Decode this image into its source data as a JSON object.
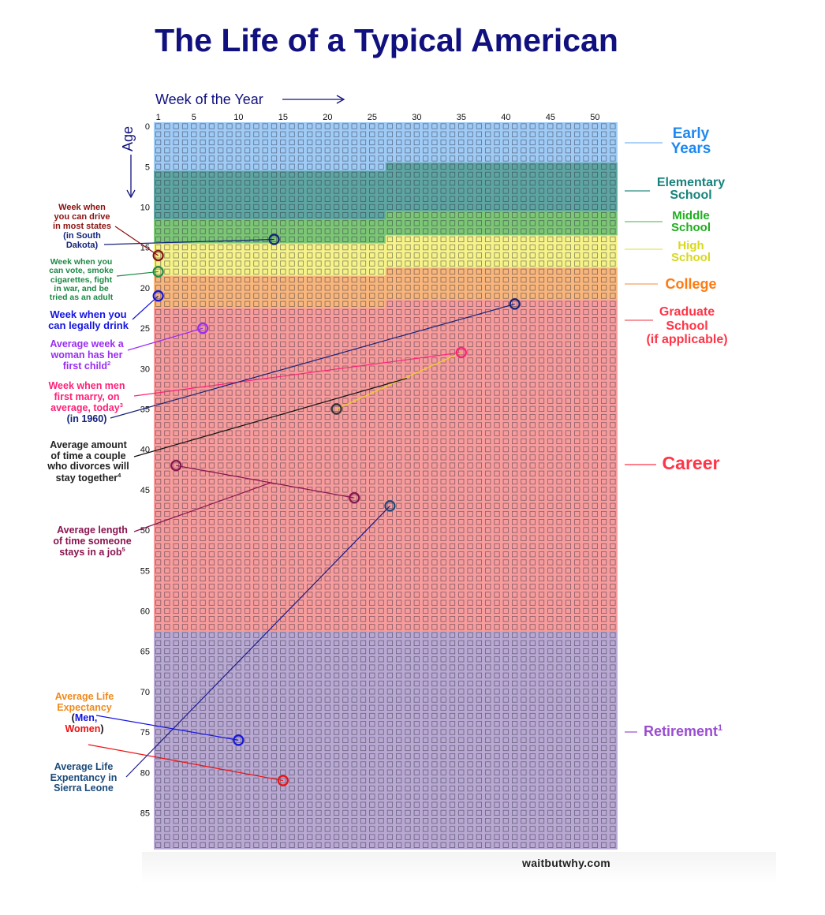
{
  "title": "The Life of a Typical American",
  "watermark": "waitbutwhy.com",
  "chart_data": {
    "type": "heatmap",
    "title": "The Life of a Typical American",
    "xlabel": "Week of the Year",
    "ylabel": "Age",
    "x_ticks": [
      "1",
      "5",
      "10",
      "15",
      "20",
      "25",
      "30",
      "35",
      "40",
      "45",
      "50"
    ],
    "y_ticks": [
      "0",
      "5",
      "10",
      "15",
      "20",
      "25",
      "30",
      "35",
      "40",
      "45",
      "50",
      "55",
      "60",
      "65",
      "70",
      "75",
      "80",
      "85"
    ],
    "weeks": 52,
    "years": 90,
    "stages": [
      {
        "name": "Early Years",
        "label_lines": [
          "Early",
          "Years"
        ],
        "start_age": 0,
        "start_week": 1,
        "fill": "#9fcbf5",
        "text_color": "#1e88f0"
      },
      {
        "name": "Elementary School",
        "label_lines": [
          "Elementary",
          "School"
        ],
        "start_age": 5,
        "start_week": 27,
        "fill": "#5ea5a2",
        "text_color": "#17837c"
      },
      {
        "name": "Middle School",
        "label_lines": [
          "Middle",
          "School"
        ],
        "start_age": 11,
        "start_week": 27,
        "fill": "#7cc676",
        "text_color": "#1fae1f"
      },
      {
        "name": "High School",
        "label_lines": [
          "High",
          "School"
        ],
        "start_age": 14,
        "start_week": 27,
        "fill": "#f6f38a",
        "text_color": "#d8d81c"
      },
      {
        "name": "College",
        "label_lines": [
          "College"
        ],
        "start_age": 18,
        "start_week": 27,
        "fill": "#f8b67c",
        "text_color": "#ff7a10"
      },
      {
        "name": "Graduate School",
        "label_lines": [
          "Graduate",
          "School",
          "(if applicable)"
        ],
        "start_age": 22,
        "start_week": 27,
        "fill": "#f79c9c",
        "text_color": "#ff3446"
      },
      {
        "name": "Career",
        "label_lines": [
          "Career"
        ],
        "start_age": 22,
        "start_week": 27,
        "fill": "#f79c9c",
        "text_color": "#ff3446"
      },
      {
        "name": "Retirement",
        "label_lines": [
          "Retirement"
        ],
        "sup": "1",
        "start_age": 63,
        "start_week": 1,
        "fill": "#b8a8d2",
        "text_color": "#9a4dd0"
      }
    ],
    "markers": [
      {
        "name": "drive-most-states",
        "week": 1,
        "age": 16,
        "color": "#8b1010"
      },
      {
        "name": "drive-south-dakota",
        "week": 14,
        "age": 14,
        "color": "#14237a"
      },
      {
        "name": "vote",
        "week": 1,
        "age": 18,
        "color": "#1d8a45"
      },
      {
        "name": "drink",
        "week": 1,
        "age": 21,
        "color": "#1414e0"
      },
      {
        "name": "first-child",
        "week": 6,
        "age": 25,
        "color": "#9a2cf5"
      },
      {
        "name": "men-marry-today",
        "week": 35,
        "age": 28,
        "color": "#ff1f78"
      },
      {
        "name": "men-marry-1960",
        "week": 41,
        "age": 22,
        "color": "#14237a"
      },
      {
        "name": "divorce",
        "week": 21,
        "age": 35,
        "color": "#333333"
      },
      {
        "name": "job-start",
        "week": 3,
        "age": 42,
        "color": "#8a1450"
      },
      {
        "name": "job-end",
        "week": 23,
        "age": 46,
        "color": "#8a1450"
      },
      {
        "name": "sierra-leone",
        "week": 27,
        "age": 47,
        "color": "#1a4a7a"
      },
      {
        "name": "life-expectancy-men",
        "week": 10,
        "age": 76,
        "color": "#1414e0"
      },
      {
        "name": "life-expectancy-women",
        "week": 15,
        "age": 81,
        "color": "#ee1111"
      }
    ]
  },
  "annotations": {
    "drive": {
      "lines": [
        "Week when",
        "you can drive",
        "in most states"
      ],
      "sd_lines": [
        "(in South",
        "Dakota)"
      ]
    },
    "vote": {
      "lines": [
        "Week when you",
        "can vote, smoke",
        "cigarettes, fight",
        "in war, and be",
        "tried as an adult"
      ]
    },
    "drink": {
      "lines": [
        "Week when you",
        "can legally drink"
      ]
    },
    "child": {
      "lines": [
        "Average week a",
        "woman has her",
        "first child"
      ],
      "sup": "2"
    },
    "marry": {
      "lines": [
        "Week when men",
        "first marry, on",
        "average, today"
      ],
      "sup": "3",
      "y1960": "(in 1960)"
    },
    "divorce": {
      "lines": [
        "Average amount",
        "of time a couple",
        "who divorces will",
        "stay together"
      ],
      "sup": "4"
    },
    "job": {
      "lines": [
        "Average length",
        "of time someone",
        "stays in a job"
      ],
      "sup": "5"
    },
    "life": {
      "lines": [
        "Average Life",
        "Expectancy"
      ],
      "open": "(",
      "men": "Men,",
      "women": "Women",
      "close": ")"
    },
    "sierra": {
      "lines": [
        "Average Life",
        "Expentancy in",
        "Sierra Leone"
      ]
    }
  }
}
